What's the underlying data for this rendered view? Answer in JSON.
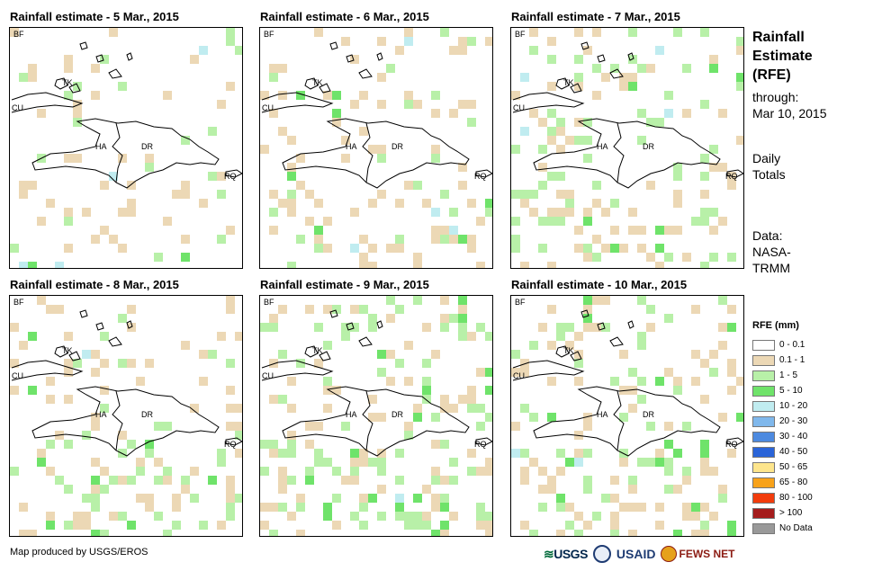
{
  "panels": [
    {
      "title": "Rainfall estimate - 5 Mar., 2015"
    },
    {
      "title": "Rainfall estimate - 6 Mar., 2015"
    },
    {
      "title": "Rainfall estimate - 7 Mar., 2015"
    },
    {
      "title": "Rainfall estimate - 8 Mar., 2015"
    },
    {
      "title": "Rainfall estimate - 9 Mar., 2015"
    },
    {
      "title": "Rainfall estimate - 10 Mar., 2015"
    }
  ],
  "map_labels": {
    "bf": "BF",
    "cu": "CU",
    "tk": "TK",
    "ha": "HA",
    "dr": "DR",
    "rq": "RQ"
  },
  "sidebar": {
    "title_lines": [
      "Rainfall",
      "Estimate",
      "(RFE)"
    ],
    "through_label": "through:",
    "through_date": "Mar 10, 2015",
    "totals_lines": [
      "Daily",
      "Totals"
    ],
    "data_lines": [
      "Data:",
      "NASA-",
      "TRMM"
    ]
  },
  "legend": {
    "title": "RFE (mm)",
    "items": [
      {
        "label": "0 - 0.1",
        "color": "#ffffff"
      },
      {
        "label": "0.1 - 1",
        "color": "#ecd8b5"
      },
      {
        "label": "1 - 5",
        "color": "#b8f0a8"
      },
      {
        "label": "5 - 10",
        "color": "#6fe36a"
      },
      {
        "label": "10 - 20",
        "color": "#c0ecf0"
      },
      {
        "label": "20 - 30",
        "color": "#80b8ec"
      },
      {
        "label": "30 - 40",
        "color": "#4d8ae0"
      },
      {
        "label": "40 - 50",
        "color": "#2a64d8"
      },
      {
        "label": "50 - 65",
        "color": "#fde58c"
      },
      {
        "label": "65 - 80",
        "color": "#f8a21a"
      },
      {
        "label": "80 - 100",
        "color": "#f23c0c"
      },
      {
        "label": "> 100",
        "color": "#a51c1c"
      },
      {
        "label": "No Data",
        "color": "#999999"
      }
    ]
  },
  "footer": {
    "credit": "Map produced by USGS/EROS",
    "logo_usgs": "USGS",
    "logo_usaid": "USAID",
    "logo_fews": "FEWS NET"
  }
}
